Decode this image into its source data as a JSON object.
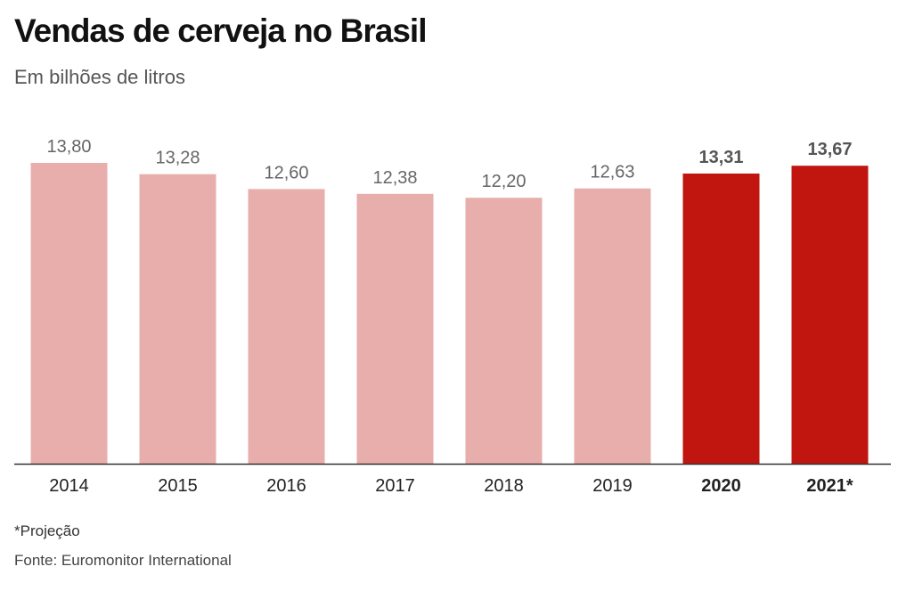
{
  "title": "Vendas de cerveja no Brasil",
  "subtitle": "Em bilhões de litros",
  "footnote": "*Projeção",
  "source": "Fonte: Euromonitor International",
  "colors": {
    "normal_bar": "#e8aeac",
    "highlight_bar": "#c0160f",
    "normal_label": "#666666",
    "highlight_label": "#555555",
    "axis": "#333333"
  },
  "chart_data": {
    "type": "bar",
    "categories": [
      "2014",
      "2015",
      "2016",
      "2017",
      "2018",
      "2019",
      "2020",
      "2021*"
    ],
    "values": [
      13.8,
      13.28,
      12.6,
      12.38,
      12.2,
      12.63,
      13.31,
      13.67
    ],
    "value_labels": [
      "13,80",
      "13,28",
      "12,60",
      "12,38",
      "12,20",
      "12,63",
      "13,31",
      "13,67"
    ],
    "highlighted": [
      false,
      false,
      false,
      false,
      false,
      false,
      true,
      true
    ],
    "title": "Vendas de cerveja no Brasil",
    "subtitle": "Em bilhões de litros",
    "ylim": [
      0,
      13.8
    ],
    "grid": false,
    "legend": "none"
  }
}
